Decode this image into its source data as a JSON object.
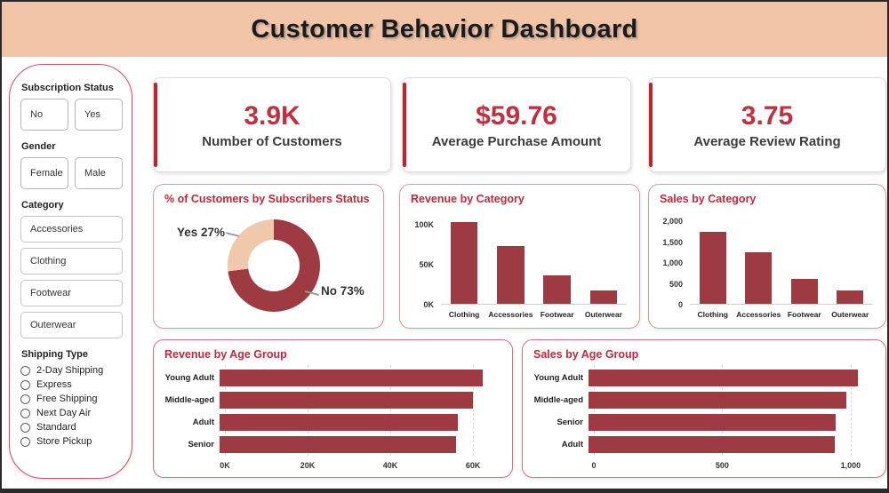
{
  "header": {
    "title": "Customer Behavior Dashboard"
  },
  "sidebar": {
    "groups": [
      {
        "label": "Subscription Status",
        "type": "buttons",
        "options": [
          "No",
          "Yes"
        ]
      },
      {
        "label": "Gender",
        "type": "buttons",
        "options": [
          "Female",
          "Male"
        ]
      },
      {
        "label": "Category",
        "type": "list",
        "options": [
          "Accessories",
          "Clothing",
          "Footwear",
          "Outerwear"
        ]
      },
      {
        "label": "Shipping Type",
        "type": "radio",
        "options": [
          "2-Day Shipping",
          "Express",
          "Free Shipping",
          "Next Day Air",
          "Standard",
          "Store Pickup"
        ]
      }
    ]
  },
  "kpis": [
    {
      "value": "3.9K",
      "label": "Number of Customers"
    },
    {
      "value": "$59.76",
      "label": "Average Purchase Amount"
    },
    {
      "value": "3.75",
      "label": "Average Review Rating"
    }
  ],
  "colors": {
    "header_bg": "#F2C5A8",
    "maroon": "#9D3A42",
    "peach": "#F0C8AC",
    "accent_red": "#C6202F",
    "title_red": "#C5273B",
    "kpi_red": "#C2303E"
  },
  "chart_data": [
    {
      "type": "donut",
      "title": "% of Customers by Subscribers Status",
      "slices": [
        {
          "label": "No",
          "pct": 73
        },
        {
          "label": "Yes",
          "pct": 27
        }
      ],
      "colors": [
        "#9D3A42",
        "#F0C8AC"
      ],
      "callouts": [
        "Yes 27%",
        "No 73%"
      ],
      "legend_position": "callout-labels"
    },
    {
      "type": "bar",
      "title": "Revenue by Category",
      "categories": [
        "Clothing",
        "Accessories",
        "Footwear",
        "Outerwear"
      ],
      "values": [
        103000,
        73000,
        36000,
        17000
      ],
      "yticks": [
        {
          "v": 0,
          "label": "0K"
        },
        {
          "v": 50000,
          "label": "50K"
        },
        {
          "v": 100000,
          "label": "100K"
        }
      ],
      "ymax": 112000,
      "xlabel": "",
      "ylabel": "",
      "color": "#9D3A42"
    },
    {
      "type": "bar",
      "title": "Sales by Category",
      "categories": [
        "Clothing",
        "Accessories",
        "Footwear",
        "Outerwear"
      ],
      "values": [
        1740,
        1240,
        600,
        320
      ],
      "yticks": [
        {
          "v": 0,
          "label": "0"
        },
        {
          "v": 500,
          "label": "500"
        },
        {
          "v": 1000,
          "label": "1,000"
        },
        {
          "v": 1500,
          "label": "1,500"
        },
        {
          "v": 2000,
          "label": "2,000"
        }
      ],
      "ymax": 2150,
      "xlabel": "",
      "ylabel": "",
      "color": "#9D3A42"
    },
    {
      "type": "hbar",
      "title": "Revenue by Age Group",
      "categories": [
        "Young Adult",
        "Middle-aged",
        "Adult",
        "Senior"
      ],
      "values": [
        62500,
        60000,
        56500,
        56000
      ],
      "xticks": [
        {
          "v": 0,
          "label": "0K"
        },
        {
          "v": 20000,
          "label": "20K"
        },
        {
          "v": 40000,
          "label": "40K"
        },
        {
          "v": 60000,
          "label": "60K"
        }
      ],
      "xmax": 66000,
      "grid": "dashed-vertical",
      "color": "#9D3A42"
    },
    {
      "type": "hbar",
      "title": "Sales by Age Group",
      "categories": [
        "Young Adult",
        "Middle-aged",
        "Senior",
        "Adult"
      ],
      "values": [
        1030,
        985,
        945,
        940
      ],
      "xticks": [
        {
          "v": 0,
          "label": "0"
        },
        {
          "v": 500,
          "label": "500"
        },
        {
          "v": 1000,
          "label": "1,000"
        }
      ],
      "xmax": 1080,
      "grid": "dashed-vertical",
      "color": "#9D3A42"
    }
  ]
}
